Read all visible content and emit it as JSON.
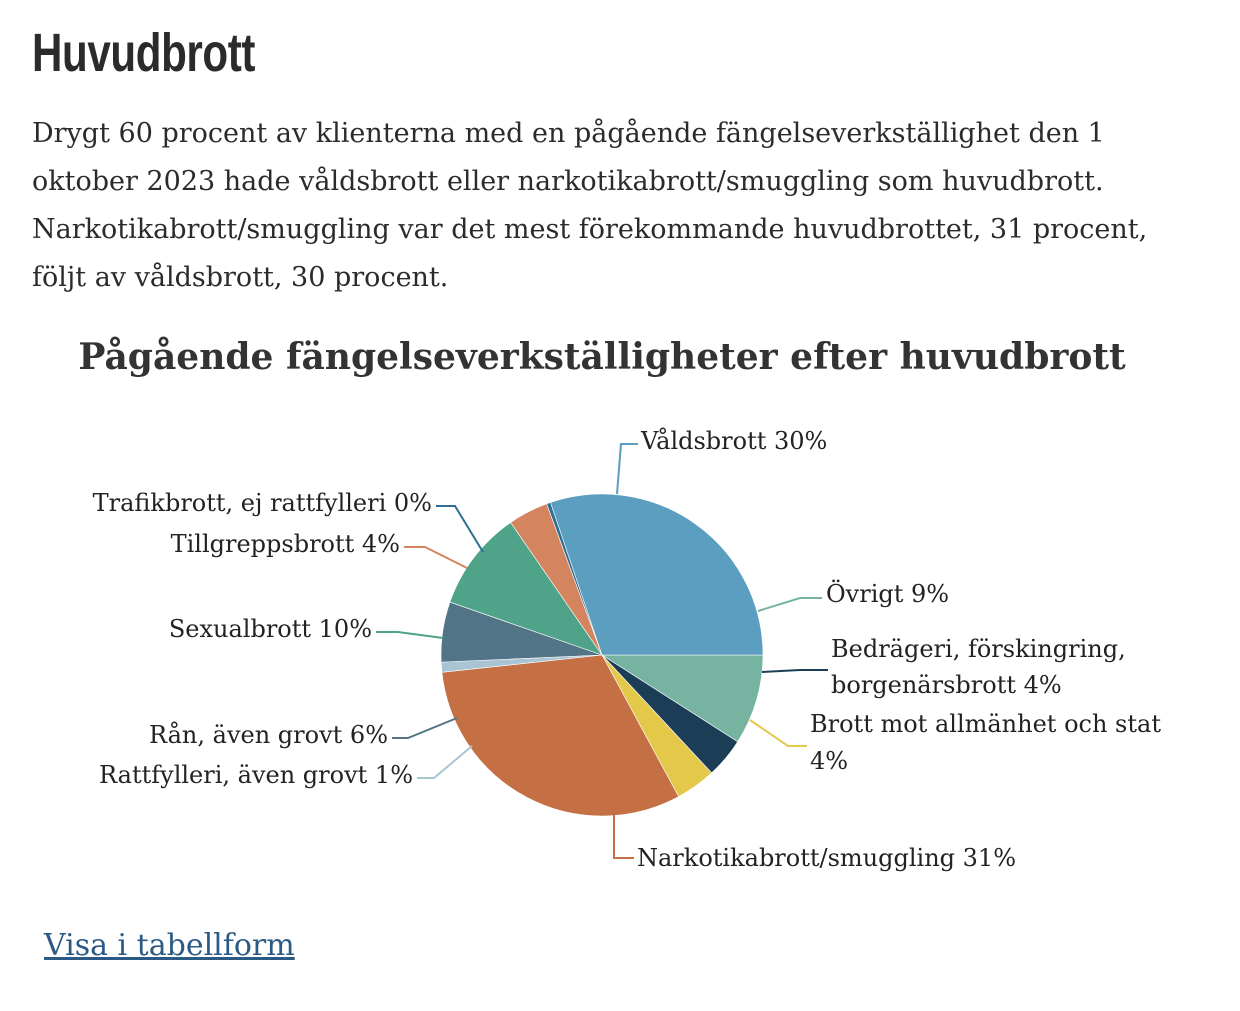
{
  "page": {
    "heading": "Huvudbrott",
    "intro": "Drygt 60 procent av klienterna med en pågående fängelseverkställighet den 1 oktober 2023 hade våldsbrott eller narkotikabrott/smuggling som huvudbrott. Narkotikabrott/smuggling var det mest förekommande huvudbrottet, 31 procent, följt av våldsbrott, 30 procent.",
    "table_link": "Visa i tabellform"
  },
  "chart_data": {
    "type": "pie",
    "title": "Pågående fängelseverkställigheter efter huvudbrott",
    "slices": [
      {
        "label": "Övrigt 9%",
        "name": "Övrigt",
        "value": 9,
        "color": "#76b3a1"
      },
      {
        "label": "Bedrägeri, förskingring, borgenärsbrott 4%",
        "name": "Bedrägeri, förskingring, borgenärsbrott",
        "value": 4,
        "color": "#1b3d56"
      },
      {
        "label": "Brott mot allmänhet och stat 4%",
        "name": "Brott mot allmänhet och stat",
        "value": 4,
        "color": "#e3c84a"
      },
      {
        "label": "Narkotikabrott/smuggling 31%",
        "name": "Narkotikabrott/smuggling",
        "value": 31,
        "color": "#c56f45"
      },
      {
        "label": "Rattfylleri, även grovt 1%",
        "name": "Rattfylleri, även grovt",
        "value": 1,
        "color": "#a9c5d4"
      },
      {
        "label": "Rån, även grovt 6%",
        "name": "Rån, även grovt",
        "value": 6,
        "color": "#527487"
      },
      {
        "label": "Sexualbrott 10%",
        "name": "Sexualbrott",
        "value": 10,
        "color": "#4fa388"
      },
      {
        "label": "Tillgreppsbrott 4%",
        "name": "Tillgreppsbrott",
        "value": 4,
        "color": "#d4845e"
      },
      {
        "label": "Trafikbrott, ej rattfylleri 0%",
        "name": "Trafikbrott, ej rattfylleri",
        "value": 0.4,
        "color": "#2f6f96"
      },
      {
        "label": "Våldsbrott 30%",
        "name": "Våldsbrott",
        "value": 30,
        "color": "#5b9ebf"
      }
    ]
  }
}
